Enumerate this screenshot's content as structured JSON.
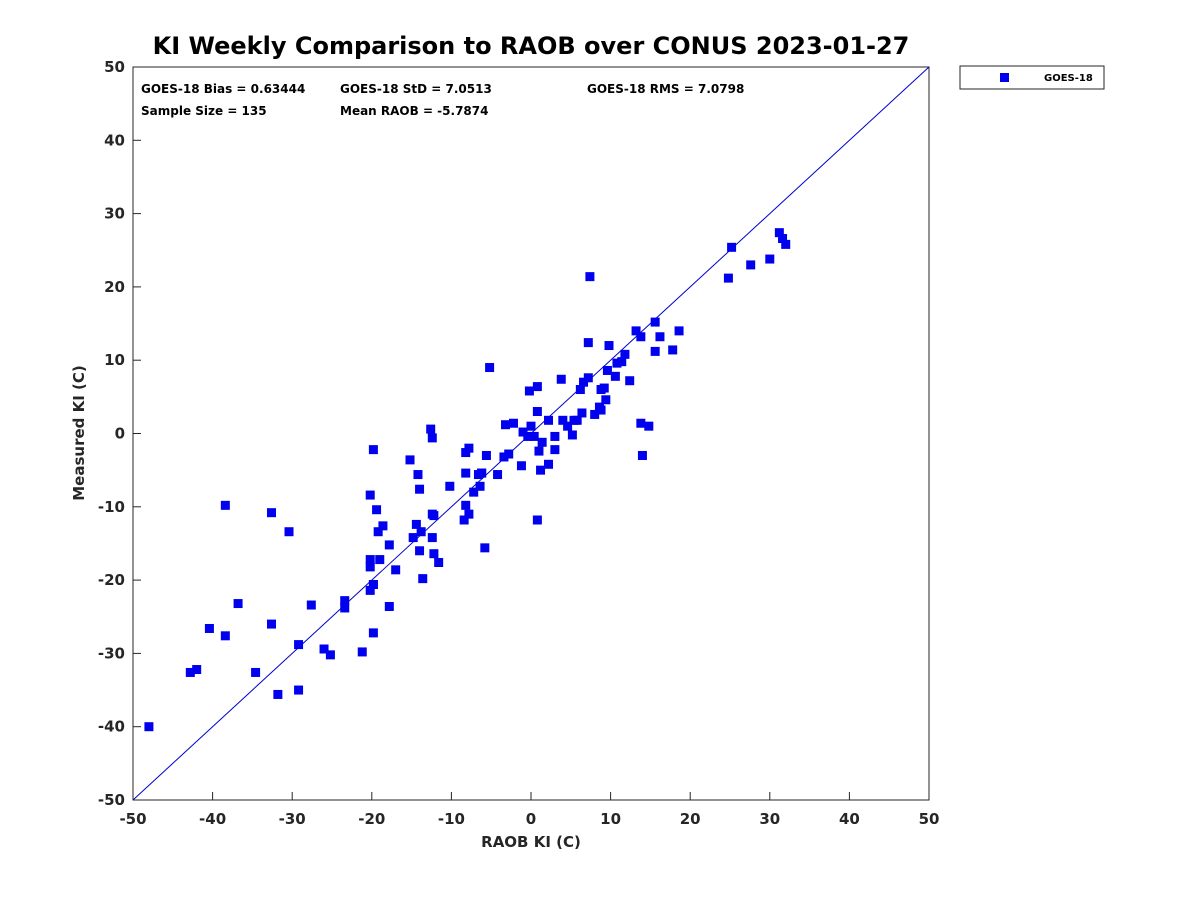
{
  "chart_data": {
    "type": "scatter",
    "title": "KI Weekly Comparison to RAOB over CONUS 2023-01-27",
    "xlabel": "RAOB KI (C)",
    "ylabel": "Measured KI (C)",
    "xlim": [
      -50,
      50
    ],
    "ylim": [
      -50,
      50
    ],
    "xticks": [
      "-50",
      "-40",
      "-30",
      "-20",
      "-10",
      "0",
      "10",
      "20",
      "30",
      "40",
      "50"
    ],
    "yticks": [
      "50",
      "40",
      "30",
      "20",
      "10",
      "0",
      "-10",
      "-20",
      "-30",
      "-40",
      "-50"
    ],
    "xtick_values": [
      -50,
      -40,
      -30,
      -20,
      -10,
      0,
      10,
      20,
      30,
      40,
      50
    ],
    "ytick_values": [
      50,
      40,
      30,
      20,
      10,
      0,
      -10,
      -20,
      -30,
      -40,
      -50
    ],
    "reference_line": {
      "from": [
        -50,
        -50
      ],
      "to": [
        50,
        50
      ]
    },
    "grid": false,
    "legend_position": "outside-top-right",
    "marker_color": "#0000ee",
    "line_color": "#0000cc",
    "stats": {
      "bias": "GOES-18 Bias = 0.63444",
      "std": "GOES-18 StD = 7.0513",
      "rms": "GOES-18 RMS = 7.0798",
      "sample_size": "Sample Size = 135",
      "mean_raob": "Mean RAOB = -5.7874"
    },
    "series": [
      {
        "name": "GOES-18",
        "x": [
          -48,
          -42.8,
          -42,
          -40.4,
          -38.4,
          -38.4,
          -36.8,
          -34.6,
          -32.6,
          -32.6,
          -31.8,
          -30.4,
          -29.2,
          -29.2,
          -27.6,
          -26,
          -25.2,
          -23.4,
          -23.4,
          -21.2,
          -20.2,
          -20.2,
          -20.2,
          -20.2,
          -19.8,
          -19.8,
          -19.8,
          -19.8,
          -19.4,
          -19.2,
          -19,
          -18.6,
          -17.8,
          -17.8,
          -17,
          -15.2,
          -14.8,
          -14.4,
          -14.2,
          -14,
          -14,
          -13.8,
          -13.6,
          -12.6,
          -12.4,
          -12.4,
          -12.4,
          -12.2,
          -12.2,
          -11.6,
          -10.2,
          -8.4,
          -8.2,
          -8.2,
          -8.2,
          -7.8,
          -7.8,
          -7.2,
          -6.6,
          -6.4,
          -6.2,
          -6.2,
          -5.8,
          -5.6,
          -5.2,
          -4.2,
          -3.4,
          -3.2,
          -2.8,
          -2.2,
          -1.2,
          -1,
          -0.4,
          -0.2,
          0,
          0.4,
          0.8,
          0.8,
          0.8,
          1,
          1.2,
          1.4,
          2.2,
          2.2,
          3,
          3,
          3.8,
          4,
          4.6,
          5.2,
          5.4,
          5.8,
          6.2,
          6.4,
          6.6,
          7.2,
          7.2,
          7.4,
          8,
          8.6,
          8.8,
          8.8,
          9.2,
          9.4,
          9.6,
          9.8,
          10.6,
          10.8,
          11.4,
          11.8,
          12.4,
          13.2,
          13.8,
          13.8,
          14,
          14.8,
          15.6,
          15.6,
          16.2,
          17.8,
          18.6,
          24.8,
          25.2,
          27.6,
          30,
          31.2,
          31.6,
          32
        ],
        "y": [
          -40,
          -32.6,
          -32.2,
          -26.6,
          -27.6,
          -9.8,
          -23.2,
          -32.6,
          -26,
          -10.8,
          -35.6,
          -13.4,
          -35,
          -28.8,
          -23.4,
          -29.4,
          -30.2,
          -22.8,
          -23.8,
          -29.8,
          -17.2,
          -18.2,
          -21.4,
          -8.4,
          -2.2,
          -20.6,
          -27.2,
          -20.6,
          -10.4,
          -13.4,
          -17.2,
          -12.6,
          -15.2,
          -23.6,
          -18.6,
          -3.6,
          -14.2,
          -12.4,
          -5.6,
          -7.6,
          -16,
          -13.4,
          -19.8,
          0.6,
          -0.6,
          -11,
          -14.2,
          -16.4,
          -11.2,
          -17.6,
          -7.2,
          -11.8,
          -2.6,
          -5.4,
          -9.8,
          -2,
          -11,
          -8,
          -5.6,
          -7.2,
          -5.4,
          -5.4,
          -15.6,
          -3,
          9,
          -5.6,
          -3.2,
          1.2,
          -2.8,
          1.4,
          -4.4,
          0.2,
          -0.4,
          5.8,
          1,
          -0.4,
          6.4,
          3,
          -11.8,
          -2.4,
          -5,
          -1.2,
          1.8,
          -4.2,
          -2.2,
          -0.4,
          7.4,
          1.8,
          1,
          -0.2,
          1.8,
          1.8,
          6,
          2.8,
          7,
          12.4,
          7.6,
          21.4,
          2.6,
          3.6,
          3.2,
          6,
          6.2,
          4.6,
          8.6,
          12,
          7.8,
          9.6,
          9.8,
          10.8,
          7.2,
          14,
          13.2,
          1.4,
          -3,
          1,
          15.2,
          11.2,
          13.2,
          11.4,
          14,
          21.2,
          25.4,
          23,
          23.8,
          27.4,
          26.6,
          25.8
        ]
      }
    ]
  }
}
